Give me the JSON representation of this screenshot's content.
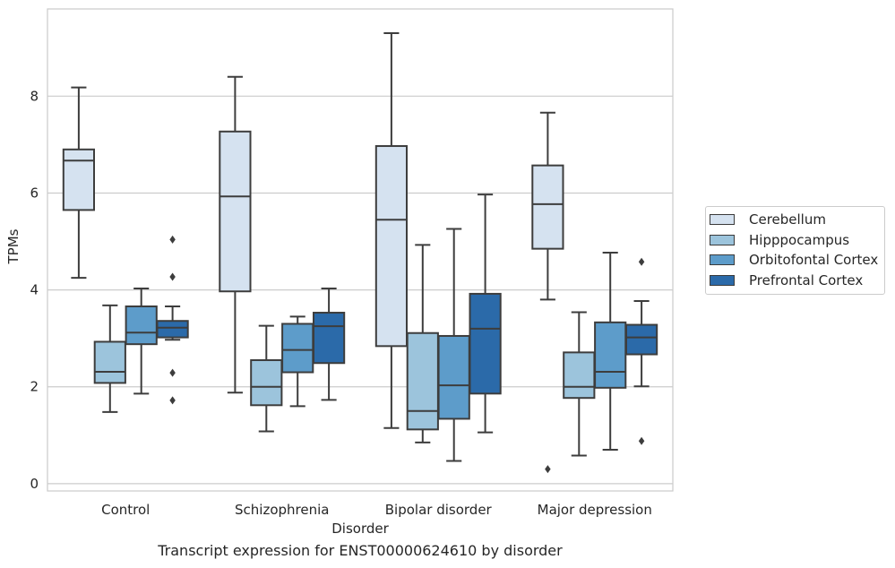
{
  "chart_data": {
    "type": "box",
    "title": "Transcript expression for ENST00000624610 by disorder",
    "xlabel": "Disorder",
    "ylabel": "TPMs",
    "ylim": [
      -0.15,
      9.8
    ],
    "yticks": [
      0,
      2,
      4,
      6,
      8
    ],
    "grid": true,
    "legend_position": "right",
    "categories": [
      "Control",
      "Schizophrenia",
      "Bipolar disorder",
      "Major depression"
    ],
    "series": [
      {
        "name": "Cerebellum",
        "color": "#d5e2f0",
        "boxes": [
          {
            "whislo": 4.25,
            "q1": 5.65,
            "med": 6.67,
            "q3": 6.9,
            "whishi": 8.18,
            "fliers": []
          },
          {
            "whislo": 1.88,
            "q1": 3.97,
            "med": 5.93,
            "q3": 7.27,
            "whishi": 8.4,
            "fliers": []
          },
          {
            "whislo": 1.15,
            "q1": 2.84,
            "med": 5.45,
            "q3": 6.97,
            "whishi": 9.3,
            "fliers": []
          },
          {
            "whislo": 3.8,
            "q1": 4.85,
            "med": 5.77,
            "q3": 6.57,
            "whishi": 7.66,
            "fliers": [
              0.3
            ]
          }
        ]
      },
      {
        "name": "Hipppocampus",
        "color": "#9cc4dc",
        "boxes": [
          {
            "whislo": 1.48,
            "q1": 2.08,
            "med": 2.31,
            "q3": 2.93,
            "whishi": 3.68,
            "fliers": []
          },
          {
            "whislo": 1.08,
            "q1": 1.62,
            "med": 2.0,
            "q3": 2.55,
            "whishi": 3.26,
            "fliers": []
          },
          {
            "whislo": 0.85,
            "q1": 1.12,
            "med": 1.5,
            "q3": 3.11,
            "whishi": 4.93,
            "fliers": []
          },
          {
            "whislo": 0.58,
            "q1": 1.77,
            "med": 2.0,
            "q3": 2.71,
            "whishi": 3.54,
            "fliers": []
          }
        ]
      },
      {
        "name": "Orbitofontal Cortex",
        "color": "#5d9cca",
        "boxes": [
          {
            "whislo": 1.86,
            "q1": 2.88,
            "med": 3.12,
            "q3": 3.66,
            "whishi": 4.03,
            "fliers": []
          },
          {
            "whislo": 1.6,
            "q1": 2.3,
            "med": 2.76,
            "q3": 3.3,
            "whishi": 3.45,
            "fliers": []
          },
          {
            "whislo": 0.47,
            "q1": 1.34,
            "med": 2.03,
            "q3": 3.05,
            "whishi": 5.26,
            "fliers": []
          },
          {
            "whislo": 0.7,
            "q1": 1.98,
            "med": 2.31,
            "q3": 3.33,
            "whishi": 4.77,
            "fliers": []
          }
        ]
      },
      {
        "name": "Prefrontal Cortex",
        "color": "#2b6aa9",
        "boxes": [
          {
            "whislo": 2.97,
            "q1": 3.02,
            "med": 3.22,
            "q3": 3.36,
            "whishi": 3.66,
            "fliers": [
              5.04,
              4.27,
              2.29,
              1.72
            ]
          },
          {
            "whislo": 1.73,
            "q1": 2.49,
            "med": 3.25,
            "q3": 3.53,
            "whishi": 4.03,
            "fliers": []
          },
          {
            "whislo": 1.06,
            "q1": 1.86,
            "med": 3.2,
            "q3": 3.92,
            "whishi": 5.97,
            "fliers": []
          },
          {
            "whislo": 2.01,
            "q1": 2.67,
            "med": 3.02,
            "q3": 3.28,
            "whishi": 3.77,
            "fliers": [
              4.58,
              0.88
            ]
          }
        ]
      }
    ]
  }
}
